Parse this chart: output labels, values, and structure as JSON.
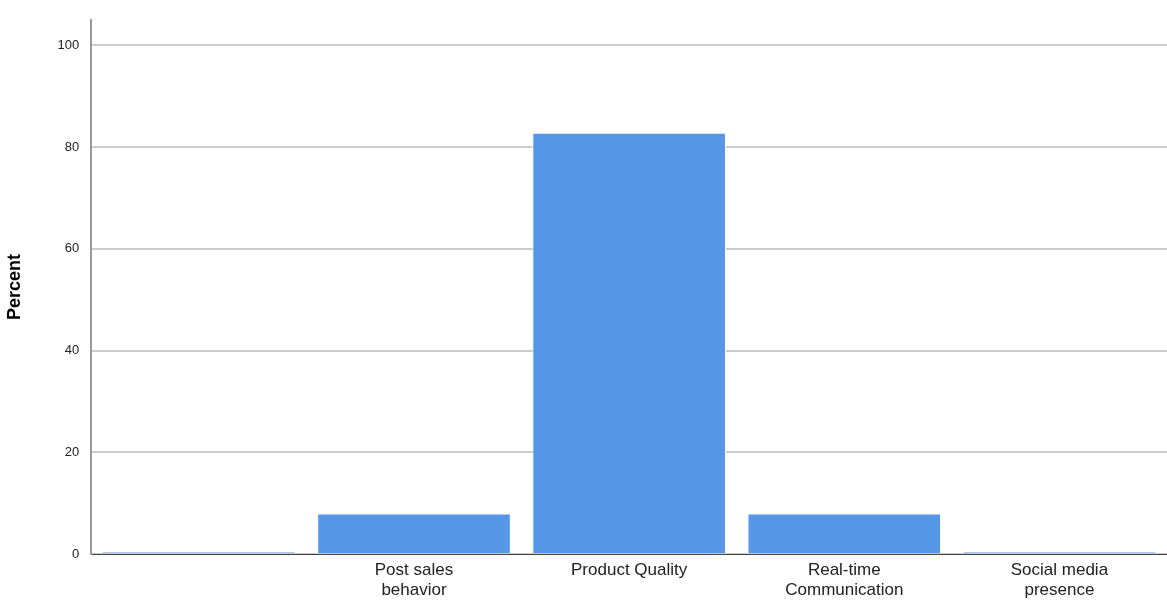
{
  "chart_data": {
    "type": "bar",
    "ylabel": "Percent",
    "categories": [
      null,
      "Post sales behavior",
      "Product Quality",
      "Real-time Communication",
      "Social media presence"
    ],
    "values": [
      0.5,
      8.0,
      82.8,
      8.0,
      0.5
    ],
    "color": "#5596e6",
    "ylim": [
      0,
      105
    ],
    "yticks": [
      0,
      20,
      40,
      60,
      80,
      100
    ],
    "grid": "y"
  }
}
